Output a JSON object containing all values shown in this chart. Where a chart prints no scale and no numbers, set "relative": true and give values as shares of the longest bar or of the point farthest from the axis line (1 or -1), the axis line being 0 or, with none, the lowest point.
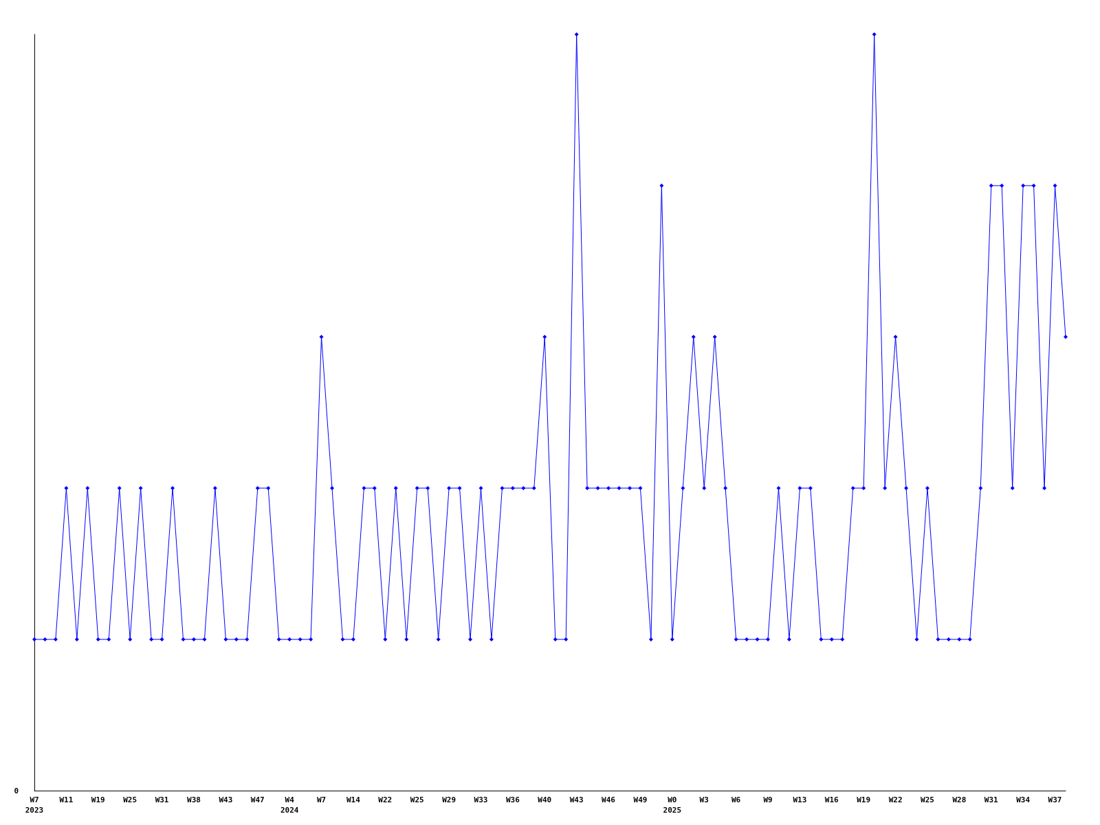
{
  "chart_data": {
    "type": "line",
    "relative": true,
    "color": "#0000ff",
    "marker": "diamond",
    "line_style": "solid",
    "categories": [
      "W7\n2023",
      null,
      null,
      "W11",
      null,
      null,
      "W19",
      null,
      null,
      "W25",
      null,
      null,
      "W31",
      null,
      null,
      "W38",
      null,
      null,
      "W43",
      null,
      null,
      "W47",
      null,
      null,
      "W4\n2024",
      null,
      null,
      "W7",
      null,
      null,
      "W14",
      null,
      null,
      "W22",
      null,
      null,
      "W25",
      null,
      null,
      "W29",
      null,
      null,
      "W33",
      null,
      null,
      "W36",
      null,
      null,
      "W40",
      null,
      null,
      "W43",
      null,
      null,
      "W46",
      null,
      null,
      "W49",
      null,
      null,
      "W0\n2025",
      null,
      null,
      "W3",
      null,
      null,
      "W6",
      null,
      null,
      "W9",
      null,
      null,
      "W13",
      null,
      null,
      "W16",
      null,
      null,
      "W19",
      null,
      null,
      "W22",
      null,
      null,
      "W25",
      null,
      null,
      "W28",
      null,
      null,
      "W31",
      null,
      null,
      "W34",
      null,
      null,
      "W37",
      null
    ],
    "values": [
      0.2,
      0.2,
      0.2,
      0.4,
      0.2,
      0.4,
      0.2,
      0.2,
      0.4,
      0.2,
      0.4,
      0.2,
      0.2,
      0.4,
      0.2,
      0.2,
      0.2,
      0.4,
      0.2,
      0.2,
      0.2,
      0.4,
      0.4,
      0.2,
      0.2,
      0.2,
      0.2,
      0.6,
      0.4,
      0.2,
      0.2,
      0.4,
      0.4,
      0.2,
      0.4,
      0.2,
      0.4,
      0.4,
      0.2,
      0.4,
      0.4,
      0.2,
      0.4,
      0.2,
      0.4,
      0.4,
      0.4,
      0.4,
      0.6,
      0.2,
      0.2,
      1,
      0.4,
      0.4,
      0.4,
      0.4,
      0.4,
      0.4,
      0.2,
      0.8,
      0.2,
      0.4,
      0.6,
      0.4,
      0.6,
      0.4,
      0.2,
      0.2,
      0.2,
      0.2,
      0.4,
      0.2,
      0.4,
      0.4,
      0.2,
      0.2,
      0.2,
      0.4,
      0.4,
      1,
      0.4,
      0.6,
      0.4,
      0.2,
      0.4,
      0.2,
      0.2,
      0.2,
      0.2,
      0.4,
      0.8,
      0.8,
      0.4,
      0.8,
      0.8,
      0.4,
      0.8,
      0.6
    ],
    "annotations": [
      "0"
    ]
  }
}
